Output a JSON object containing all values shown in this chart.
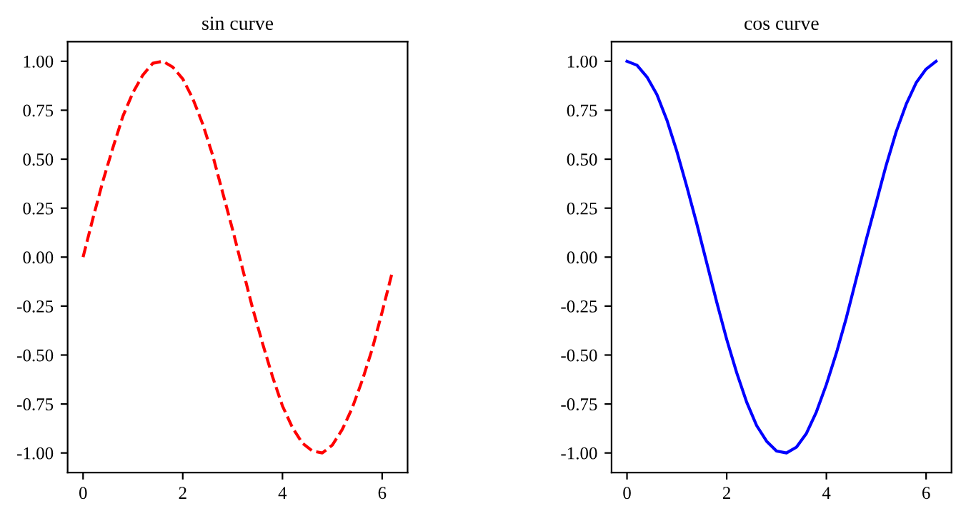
{
  "chart_data": [
    {
      "type": "line",
      "title": "sin curve",
      "line_style": "dashed",
      "xlim": [
        -0.31,
        6.51
      ],
      "ylim": [
        -1.1,
        1.1
      ],
      "xticks": [
        0,
        2,
        4,
        6
      ],
      "yticks": [
        {
          "value": -1,
          "label": "-1.00"
        },
        {
          "value": -0.75,
          "label": "-0.75"
        },
        {
          "value": -0.5,
          "label": "-0.50"
        },
        {
          "value": -0.25,
          "label": "-0.25"
        },
        {
          "value": 0,
          "label": "0.00"
        },
        {
          "value": 0.25,
          "label": "0.25"
        },
        {
          "value": 0.5,
          "label": "0.50"
        },
        {
          "value": 0.75,
          "label": "0.75"
        },
        {
          "value": 1,
          "label": "1.00"
        }
      ],
      "x": [
        0,
        0.2,
        0.4,
        0.6,
        0.8,
        1.0,
        1.2,
        1.4,
        1.6,
        1.8,
        2.0,
        2.2,
        2.4,
        2.6,
        2.8,
        3.0,
        3.2,
        3.4,
        3.6,
        3.8,
        4.0,
        4.2,
        4.4,
        4.6,
        4.8,
        5.0,
        5.2,
        5.4,
        5.6,
        5.8,
        6.0,
        6.2
      ],
      "series": [
        {
          "color": "#ff0000",
          "values": [
            0,
            0.2,
            0.39,
            0.56,
            0.72,
            0.84,
            0.93,
            0.99,
            1.0,
            0.97,
            0.91,
            0.81,
            0.68,
            0.52,
            0.33,
            0.14,
            -0.06,
            -0.26,
            -0.44,
            -0.61,
            -0.76,
            -0.87,
            -0.95,
            -0.99,
            -1.0,
            -0.96,
            -0.88,
            -0.77,
            -0.63,
            -0.47,
            -0.28,
            -0.08
          ]
        }
      ]
    },
    {
      "type": "line",
      "title": "cos curve",
      "line_style": "solid",
      "xlim": [
        -0.31,
        6.51
      ],
      "ylim": [
        -1.1,
        1.1
      ],
      "xticks": [
        0,
        2,
        4,
        6
      ],
      "yticks": [
        {
          "value": -1,
          "label": "-1.00"
        },
        {
          "value": -0.75,
          "label": "-0.75"
        },
        {
          "value": -0.5,
          "label": "-0.50"
        },
        {
          "value": -0.25,
          "label": "-0.25"
        },
        {
          "value": 0,
          "label": "0.00"
        },
        {
          "value": 0.25,
          "label": "0.25"
        },
        {
          "value": 0.5,
          "label": "0.50"
        },
        {
          "value": 0.75,
          "label": "0.75"
        },
        {
          "value": 1,
          "label": "1.00"
        }
      ],
      "x": [
        0,
        0.2,
        0.4,
        0.6,
        0.8,
        1.0,
        1.2,
        1.4,
        1.6,
        1.8,
        2.0,
        2.2,
        2.4,
        2.6,
        2.8,
        3.0,
        3.2,
        3.4,
        3.6,
        3.8,
        4.0,
        4.2,
        4.4,
        4.6,
        4.8,
        5.0,
        5.2,
        5.4,
        5.6,
        5.8,
        6.0,
        6.2
      ],
      "series": [
        {
          "color": "#0000ff",
          "values": [
            1.0,
            0.98,
            0.92,
            0.83,
            0.7,
            0.54,
            0.36,
            0.17,
            -0.03,
            -0.23,
            -0.42,
            -0.59,
            -0.74,
            -0.86,
            -0.94,
            -0.99,
            -1.0,
            -0.97,
            -0.9,
            -0.79,
            -0.65,
            -0.49,
            -0.31,
            -0.11,
            0.09,
            0.28,
            0.47,
            0.64,
            0.78,
            0.89,
            0.96,
            1.0
          ]
        }
      ]
    }
  ]
}
